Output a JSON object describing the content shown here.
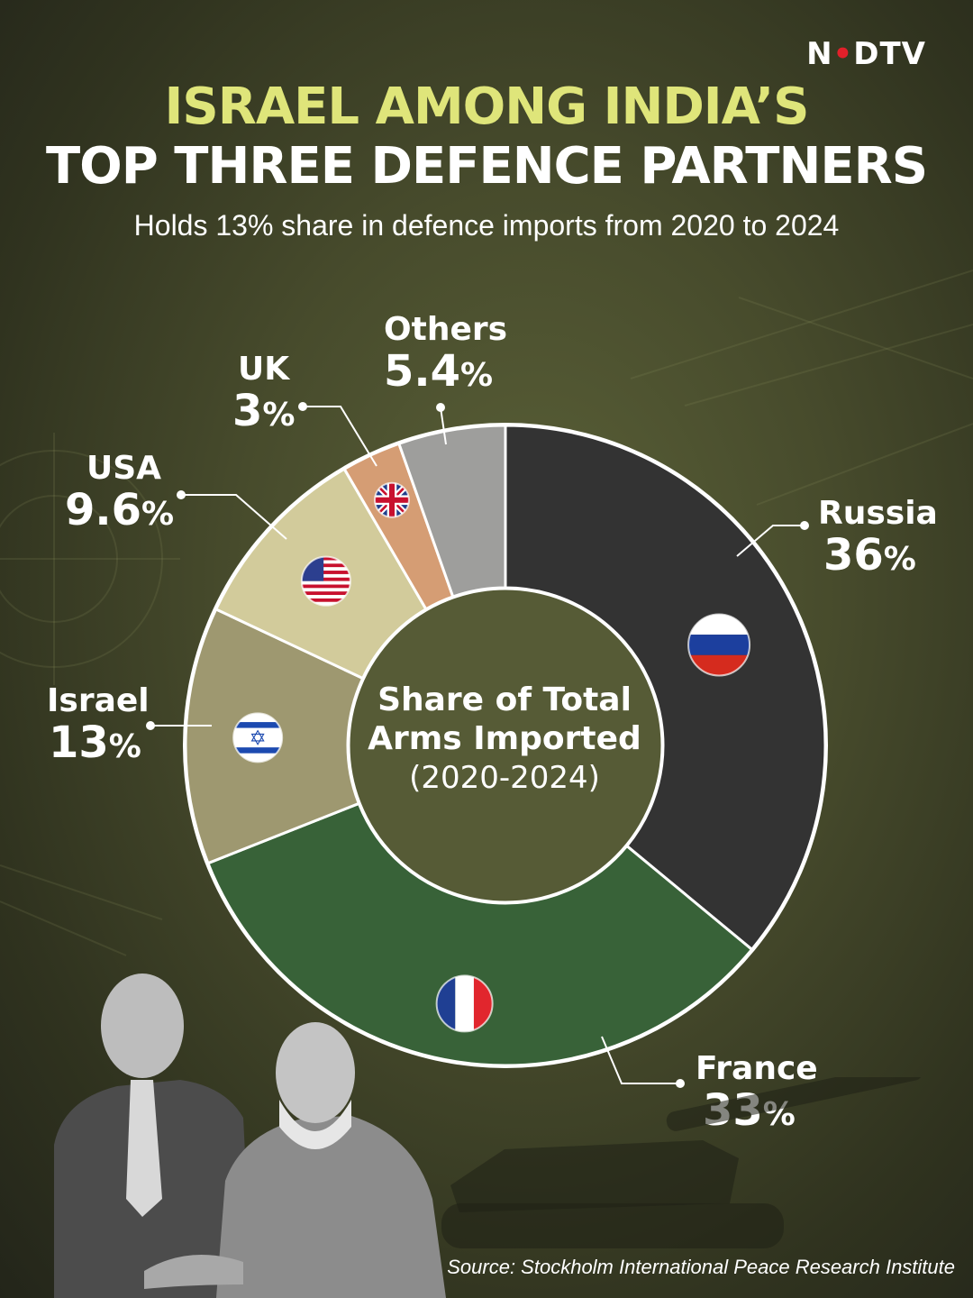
{
  "brand": {
    "logo_pre": "N",
    "logo_dot": "•",
    "logo_post": "DTV"
  },
  "title_line1": "ISRAEL AMONG INDIA’S",
  "title_line2": "TOP THREE DEFENCE PARTNERS",
  "subtitle": "Holds 13% share in defence imports from 2020 to 2024",
  "center": {
    "title_line1": "Share of Total",
    "title_line2": "Arms Imported",
    "range": "(2020-2024)"
  },
  "source": "Source: Stockholm International Peace Research Institute",
  "labels": {
    "russia": {
      "name": "Russia",
      "value": "36"
    },
    "france": {
      "name": "France",
      "value": "33"
    },
    "israel": {
      "name": "Israel",
      "value": "13"
    },
    "usa": {
      "name": "USA",
      "value": "9.6"
    },
    "uk": {
      "name": "UK",
      "value": "3"
    },
    "others": {
      "name": "Others",
      "value": "5.4"
    },
    "percent_sign": "%"
  },
  "chart_data": {
    "type": "pie",
    "style": "donut",
    "unit": "%",
    "title": "Share of Total Arms Imported (2020-2024)",
    "categories": [
      "Russia",
      "France",
      "Israel",
      "USA",
      "UK",
      "Others"
    ],
    "values": [
      36,
      33,
      13,
      9.6,
      3,
      5.4
    ],
    "colors": [
      "#333333",
      "#386238",
      "#9e9870",
      "#d2cb9b",
      "#d59d74",
      "#9e9e9c"
    ],
    "icons": [
      "russia-flag-icon",
      "france-flag-icon",
      "israel-flag-icon",
      "usa-flag-icon",
      "uk-flag-icon",
      ""
    ],
    "start": "12 o'clock, clockwise",
    "legend": "none"
  }
}
